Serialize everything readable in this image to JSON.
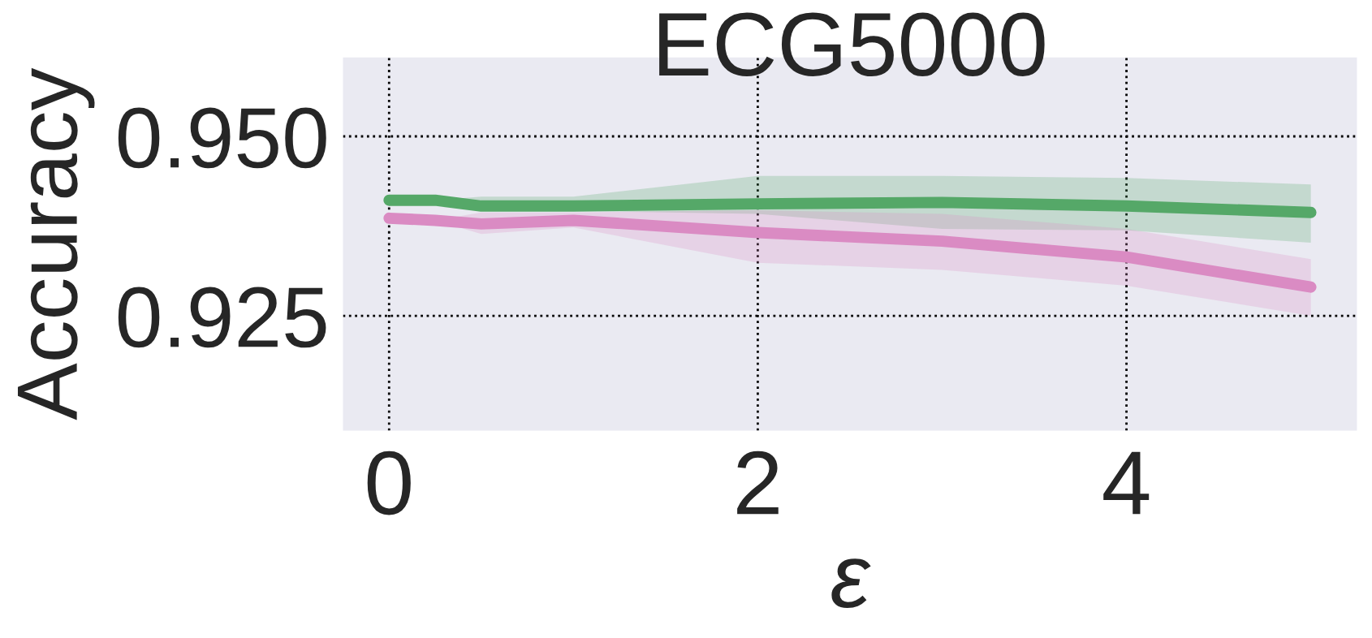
{
  "chart_data": {
    "type": "line",
    "title": "ECG5000",
    "xlabel": "ε",
    "ylabel": "Accuracy",
    "x": [
      0,
      0.25,
      0.5,
      1,
      2,
      3,
      4,
      5
    ],
    "series": [
      {
        "color": "#55a868",
        "values": [
          0.9411,
          0.9411,
          0.9403,
          0.9403,
          0.9406,
          0.9408,
          0.9403,
          0.9394
        ],
        "lower": [
          0.9411,
          0.9411,
          0.9396,
          0.9396,
          0.9392,
          0.9371,
          0.9369,
          0.9352
        ],
        "upper": [
          0.9411,
          0.9411,
          0.9416,
          0.9416,
          0.9445,
          0.9445,
          0.9442,
          0.9433
        ]
      },
      {
        "color": "#da8bc3",
        "values": [
          0.9386,
          0.9383,
          0.9378,
          0.9383,
          0.9366,
          0.9354,
          0.9332,
          0.929
        ],
        "lower": [
          0.9386,
          0.9383,
          0.9364,
          0.9373,
          0.9324,
          0.9314,
          0.9292,
          0.925
        ],
        "upper": [
          0.9386,
          0.9383,
          0.9394,
          0.9394,
          0.9397,
          0.9392,
          0.9371,
          0.9329
        ]
      }
    ],
    "xlim": [
      -0.25,
      5.25
    ],
    "ylim": [
      0.909,
      0.961
    ],
    "xticks": [
      0,
      2,
      4
    ],
    "yticks": [
      {
        "value": 0.925,
        "label": "0.925"
      },
      {
        "value": 0.95,
        "label": "0.950"
      }
    ],
    "grid": true,
    "line_style": "solid"
  }
}
